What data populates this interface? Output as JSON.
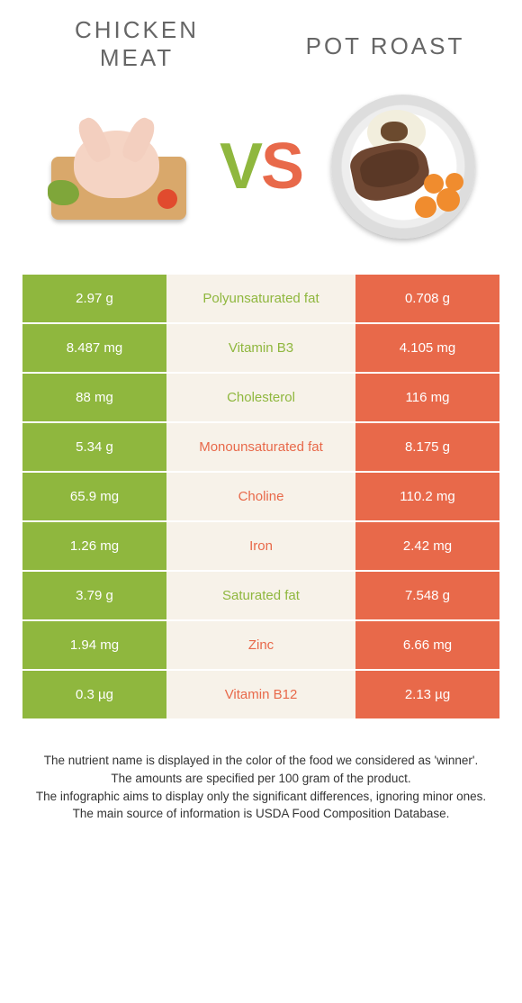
{
  "titles": {
    "left": "Chicken meat",
    "right": "Pot Roast"
  },
  "vs": {
    "v": "V",
    "s": "S"
  },
  "colors": {
    "left": "#8fb73e",
    "right": "#e8694a",
    "mid_bg": "#f7f2e9"
  },
  "rows": [
    {
      "left": "2.97 g",
      "nutrient": "Polyunsaturated fat",
      "right": "0.708 g",
      "winner": "left"
    },
    {
      "left": "8.487 mg",
      "nutrient": "Vitamin B3",
      "right": "4.105 mg",
      "winner": "left"
    },
    {
      "left": "88 mg",
      "nutrient": "Cholesterol",
      "right": "116 mg",
      "winner": "left"
    },
    {
      "left": "5.34 g",
      "nutrient": "Monounsaturated fat",
      "right": "8.175 g",
      "winner": "right"
    },
    {
      "left": "65.9 mg",
      "nutrient": "Choline",
      "right": "110.2 mg",
      "winner": "right"
    },
    {
      "left": "1.26 mg",
      "nutrient": "Iron",
      "right": "2.42 mg",
      "winner": "right"
    },
    {
      "left": "3.79 g",
      "nutrient": "Saturated fat",
      "right": "7.548 g",
      "winner": "left"
    },
    {
      "left": "1.94 mg",
      "nutrient": "Zinc",
      "right": "6.66 mg",
      "winner": "right"
    },
    {
      "left": "0.3 µg",
      "nutrient": "Vitamin B12",
      "right": "2.13 µg",
      "winner": "right"
    }
  ],
  "footer": {
    "l1": "The nutrient name is displayed in the color of the food we considered as 'winner'.",
    "l2": "The amounts are specified per 100 gram of the product.",
    "l3": "The infographic aims to display only the significant differences, ignoring minor ones.",
    "l4": "The main source of information is USDA Food Composition Database."
  }
}
